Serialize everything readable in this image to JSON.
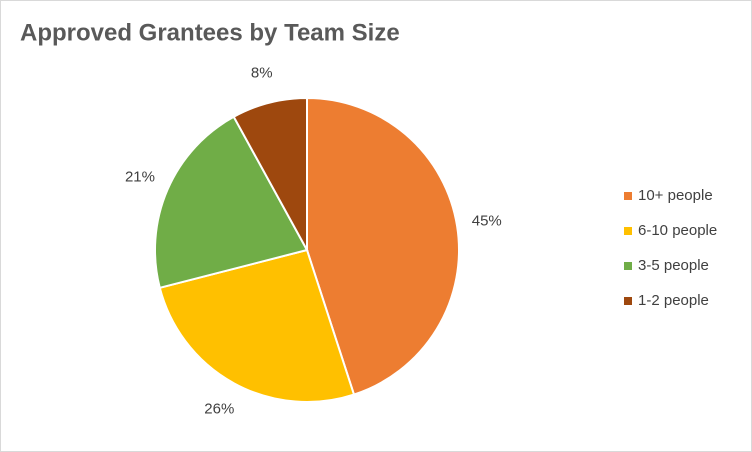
{
  "chart_data": {
    "type": "pie",
    "title": "Approved Grantees by Team Size",
    "categories": [
      "10+ people",
      "6-10 people",
      "3-5 people",
      "1-2 people"
    ],
    "values": [
      45,
      26,
      21,
      8
    ],
    "value_labels": [
      "45%",
      "26%",
      "21%",
      "8%"
    ],
    "colors": [
      "#ED7D31",
      "#FFC000",
      "#70AD47",
      "#9E480E"
    ],
    "legend": "right"
  }
}
